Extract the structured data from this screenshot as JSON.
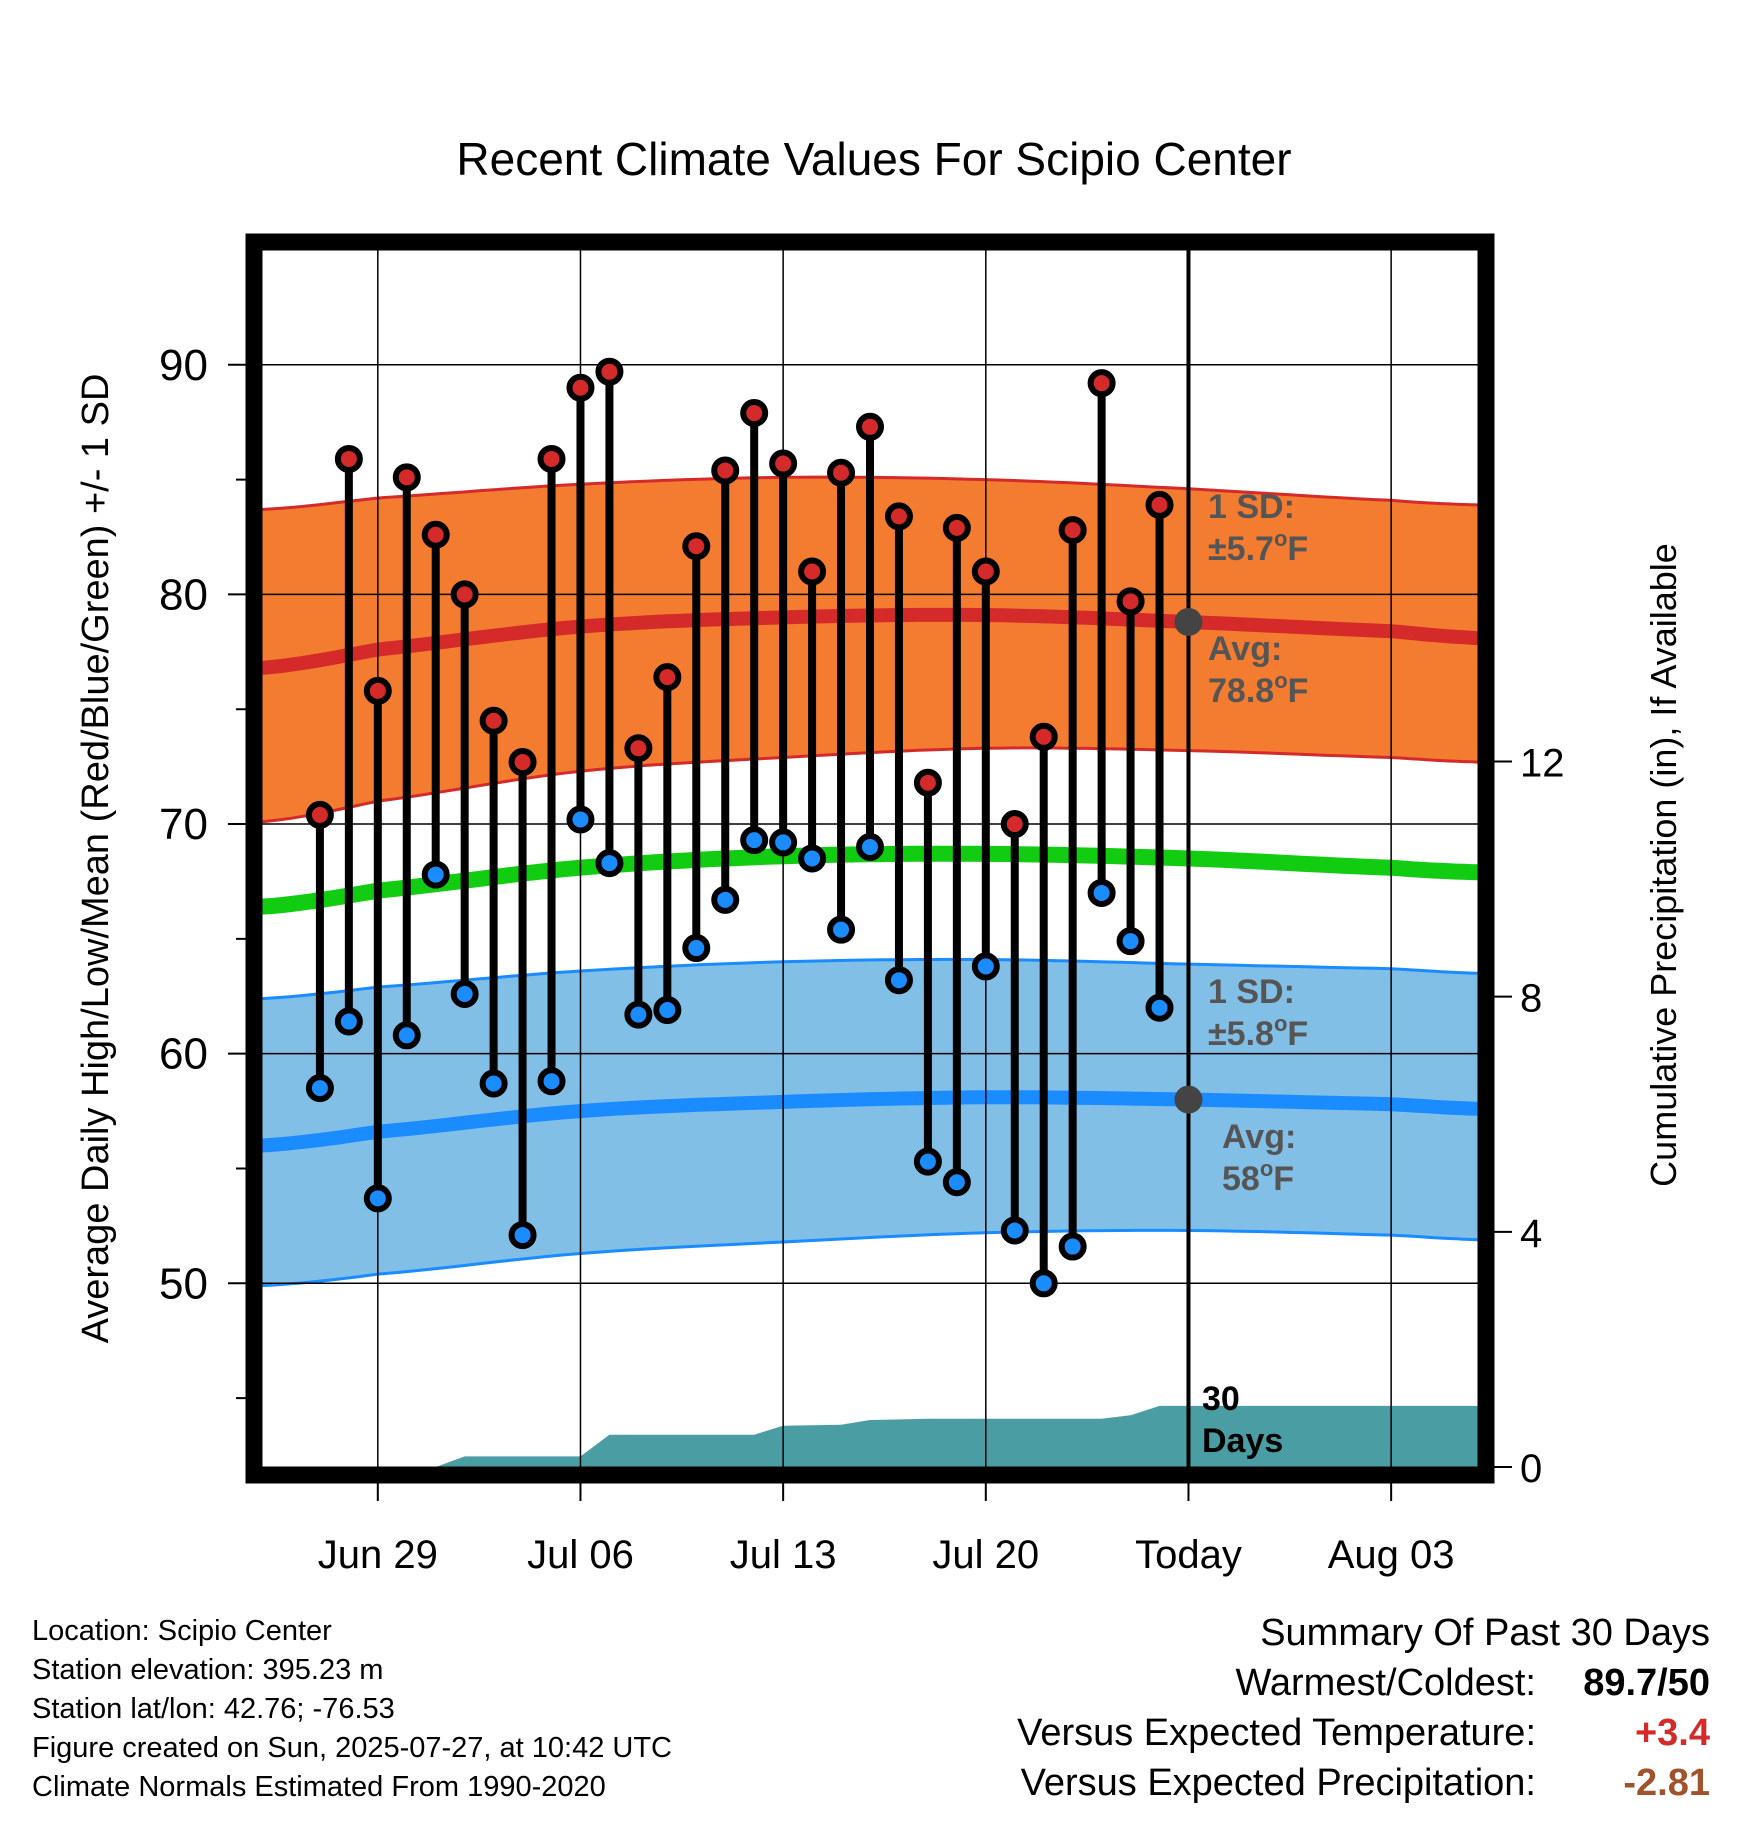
{
  "chart_data": {
    "type": "line",
    "title": "Recent Climate Values For Scipio Center",
    "xlabel": "Day",
    "ylabel_left": "Average Daily High/Low/Mean (Red/Blue/Green) +/- 1 SD",
    "ylabel_right": "Cumulative Precipitation (in), If Available",
    "xlim": [
      "2025-06-25",
      "2025-08-06"
    ],
    "ylim_left": [
      42,
      95
    ],
    "ylim_right": [
      0,
      20.7
    ],
    "y_ticks_left": [
      90,
      80,
      70,
      60,
      50
    ],
    "y_ticks_right": [
      12,
      8,
      4,
      0
    ],
    "x_ticks": [
      {
        "date": "2025-06-29",
        "label": "Jun 29"
      },
      {
        "date": "2025-07-06",
        "label": "Jul 06"
      },
      {
        "date": "2025-07-13",
        "label": "Jul 13"
      },
      {
        "date": "2025-07-20",
        "label": "Jul 20"
      },
      {
        "date": "2025-07-27",
        "label": "Today"
      },
      {
        "date": "2025-08-03",
        "label": "Aug 03"
      }
    ],
    "today": "2025-07-27",
    "normals": {
      "dates": [
        "2025-06-25",
        "2025-06-29",
        "2025-07-06",
        "2025-07-13",
        "2025-07-20",
        "2025-07-27",
        "2025-08-03",
        "2025-08-06"
      ],
      "high_avg": [
        76.8,
        77.6,
        78.6,
        79.0,
        79.1,
        78.8,
        78.4,
        78.1
      ],
      "high_upper": [
        83.7,
        84.2,
        84.8,
        85.1,
        85.0,
        84.6,
        84.1,
        83.9
      ],
      "high_lower": [
        70.1,
        71.0,
        72.3,
        72.9,
        73.3,
        73.2,
        72.9,
        72.7
      ],
      "mean_avg": [
        66.4,
        67.1,
        68.1,
        68.6,
        68.7,
        68.5,
        68.1,
        67.9
      ],
      "low_avg": [
        56.0,
        56.6,
        57.5,
        57.9,
        58.1,
        58.0,
        57.8,
        57.6
      ],
      "low_upper": [
        62.4,
        62.9,
        63.6,
        64.0,
        64.1,
        63.9,
        63.7,
        63.5
      ],
      "low_lower": [
        49.9,
        50.4,
        51.3,
        51.8,
        52.2,
        52.3,
        52.1,
        51.9
      ]
    },
    "daily": {
      "dates": [
        "2025-06-27",
        "2025-06-28",
        "2025-06-29",
        "2025-06-30",
        "2025-07-01",
        "2025-07-02",
        "2025-07-03",
        "2025-07-04",
        "2025-07-05",
        "2025-07-06",
        "2025-07-07",
        "2025-07-08",
        "2025-07-09",
        "2025-07-10",
        "2025-07-11",
        "2025-07-12",
        "2025-07-13",
        "2025-07-14",
        "2025-07-15",
        "2025-07-16",
        "2025-07-17",
        "2025-07-18",
        "2025-07-19",
        "2025-07-20",
        "2025-07-21",
        "2025-07-22",
        "2025-07-23",
        "2025-07-24",
        "2025-07-25",
        "2025-07-26"
      ],
      "highs": [
        70.4,
        85.9,
        75.8,
        85.1,
        82.6,
        80.0,
        74.5,
        72.7,
        85.9,
        89.0,
        89.7,
        73.3,
        76.4,
        82.1,
        85.4,
        87.9,
        85.7,
        81.0,
        85.3,
        87.3,
        83.4,
        71.8,
        82.9,
        81.0,
        70.0,
        73.8,
        82.8,
        89.2,
        79.7,
        83.9
      ],
      "lows": [
        58.5,
        61.4,
        53.7,
        60.8,
        67.8,
        62.6,
        58.7,
        52.1,
        58.8,
        70.2,
        68.3,
        61.7,
        61.9,
        64.6,
        66.7,
        69.3,
        69.2,
        68.5,
        65.4,
        69.0,
        63.2,
        55.3,
        54.4,
        63.8,
        52.3,
        50.0,
        51.6,
        67.0,
        64.9,
        62.0
      ]
    },
    "precip_cumulative": {
      "dates": [
        "2025-06-25",
        "2025-07-01",
        "2025-07-02",
        "2025-07-06",
        "2025-07-07",
        "2025-07-12",
        "2025-07-13",
        "2025-07-15",
        "2025-07-16",
        "2025-07-18",
        "2025-07-24",
        "2025-07-25",
        "2025-07-26",
        "2025-08-06"
      ],
      "values": [
        0.0,
        0.0,
        0.18,
        0.18,
        0.55,
        0.55,
        0.7,
        0.72,
        0.8,
        0.82,
        0.82,
        0.88,
        1.04,
        1.04
      ]
    },
    "annotations": {
      "high_sd": {
        "line1": "1 SD:",
        "line2": "±5.7",
        "unit": "F"
      },
      "high_avg": {
        "label": "Avg:",
        "value": "78.8",
        "unit": "F"
      },
      "low_sd": {
        "line1": "1 SD:",
        "line2": "±5.8",
        "unit": "F"
      },
      "low_avg": {
        "label": "Avg:",
        "value": "58",
        "unit": "F"
      },
      "precip_label": {
        "line1": "30",
        "line2": "Days"
      },
      "degree_symbol": "o"
    },
    "colors": {
      "high_band": "#f47c30",
      "high_line": "#d42a2a",
      "low_band": "#82bfe6",
      "low_line": "#1a8cff",
      "mean_line": "#11cc11",
      "precip_fill": "#4a9ea3",
      "high_marker": "#d42a2a",
      "low_marker": "#1a8cff",
      "annotation_text": "#555555"
    }
  },
  "footer": {
    "location": "Location: Scipio Center",
    "elevation": "Station elevation: 395.23 m",
    "latlon": "Station lat/lon: 42.76; -76.53",
    "created": "Figure created on Sun, 2025-07-27, at 10:42 UTC",
    "normals": "Climate Normals Estimated From 1990-2020"
  },
  "summary": {
    "title": "Summary Of Past 30 Days",
    "warm_cold_label": "Warmest/Coldest:",
    "warm_cold_value": "89.7/50",
    "temp_label": "Versus Expected Temperature:",
    "temp_value": "+3.4",
    "temp_color": "#d42a2a",
    "precip_label": "Versus Expected Precipitation:",
    "precip_value": "-2.81",
    "precip_color": "#a0522d"
  }
}
